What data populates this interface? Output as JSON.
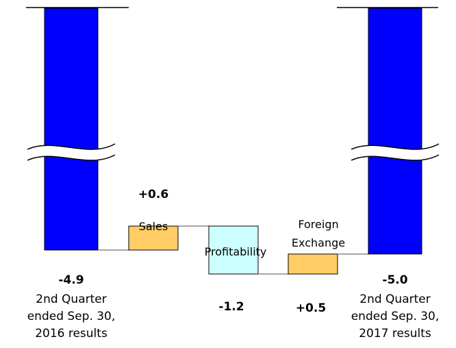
{
  "chart_data": {
    "type": "waterfall",
    "title": "",
    "start": {
      "value": -4.9,
      "value_label": "-4.9",
      "caption": [
        "2nd Quarter",
        "ended Sep. 30,",
        "2016 results"
      ],
      "color": "#0000FF"
    },
    "steps": [
      {
        "name": "Sales",
        "delta": 0.6,
        "value_label": "+0.6",
        "color": "#FFCC66",
        "caption": [
          "Sales"
        ]
      },
      {
        "name": "Profitability",
        "delta": -1.2,
        "value_label": "-1.2",
        "color": "#CCFFFF",
        "caption": [
          "Profitability"
        ]
      },
      {
        "name": "Foreign Exchange",
        "delta": 0.5,
        "value_label": "+0.5",
        "color": "#FFCC66",
        "caption": [
          "Foreign",
          "Exchange"
        ]
      }
    ],
    "end": {
      "value": -5.0,
      "value_label": "-5.0",
      "caption": [
        "2nd Quarter",
        "ended Sep. 30,",
        "2017 results"
      ],
      "color": "#0000FF"
    },
    "axis_break": true,
    "legend": "none",
    "grid": false
  }
}
